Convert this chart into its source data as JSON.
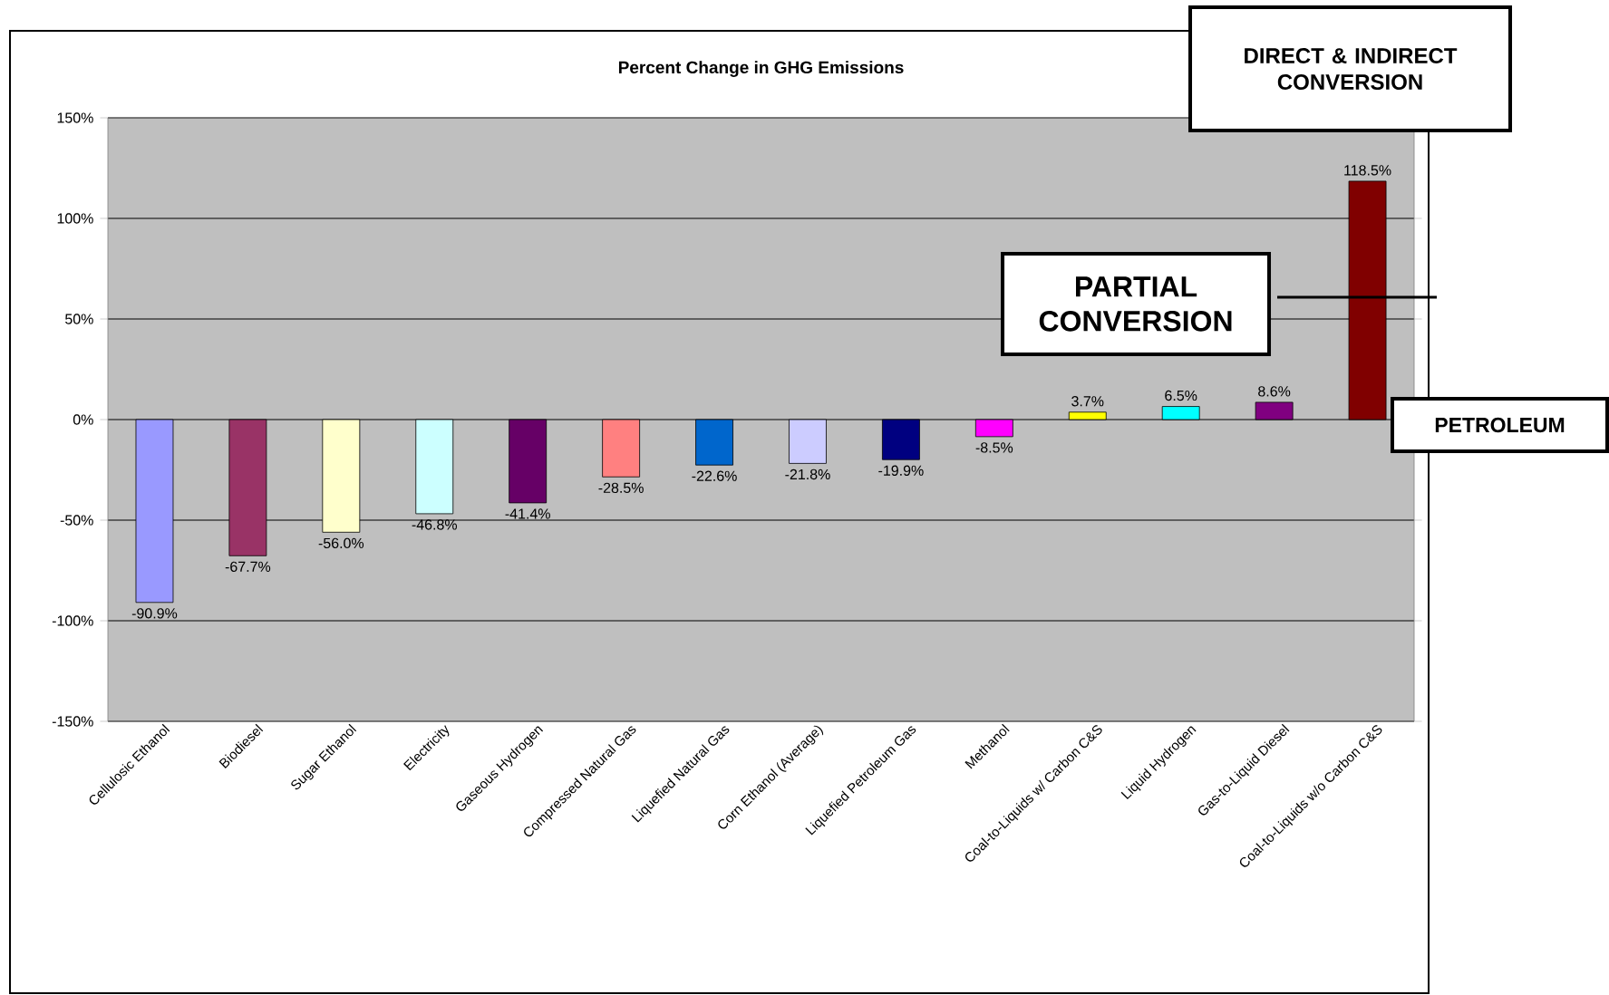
{
  "chart_data": {
    "type": "bar",
    "title": "Percent Change in GHG Emissions",
    "categories": [
      "Cellulosic Ethanol",
      "Biodiesel",
      "Sugar Ethanol",
      "Electricity",
      "Gaseous Hydrogen",
      "Compressed Natural Gas",
      "Liquefied Natural Gas",
      "Corn Ethanol (Average)",
      "Liquefied Petroleum Gas",
      "Methanol",
      "Coal-to-Liquids w/ Carbon C&S",
      "Liquid Hydrogen",
      "Gas-to-Liquid Diesel",
      "Coal-to-Liquids w/o Carbon C&S"
    ],
    "values": [
      -90.9,
      -67.7,
      -56.0,
      -46.8,
      -41.4,
      -28.5,
      -22.6,
      -21.8,
      -19.9,
      -8.5,
      3.7,
      6.5,
      8.6,
      118.5
    ],
    "value_labels": [
      "-90.9%",
      "-67.7%",
      "-56.0%",
      "-46.8%",
      "-41.4%",
      "-28.5%",
      "-22.6%",
      "-21.8%",
      "-19.9%",
      "-8.5%",
      "3.7%",
      "6.5%",
      "8.6%",
      "118.5%"
    ],
    "colors": [
      "#9999ff",
      "#993366",
      "#ffffcc",
      "#ccffff",
      "#660066",
      "#ff8080",
      "#0066cc",
      "#ccccff",
      "#000080",
      "#ff00ff",
      "#ffff00",
      "#00ffff",
      "#800080",
      "#800000"
    ],
    "ylim": [
      -150,
      150
    ],
    "yticks": [
      {
        "value": -150,
        "label": "-150%"
      },
      {
        "value": -100,
        "label": "-100%"
      },
      {
        "value": -50,
        "label": "-50%"
      },
      {
        "value": 0,
        "label": "0%"
      },
      {
        "value": 50,
        "label": "50%"
      },
      {
        "value": 100,
        "label": "100%"
      },
      {
        "value": 150,
        "label": "150%"
      }
    ],
    "grid": "y",
    "annotations": [
      "DIRECT & INDIRECT CONVERSION",
      "PARTIAL CONVERSION",
      "PETROLEUM"
    ]
  }
}
